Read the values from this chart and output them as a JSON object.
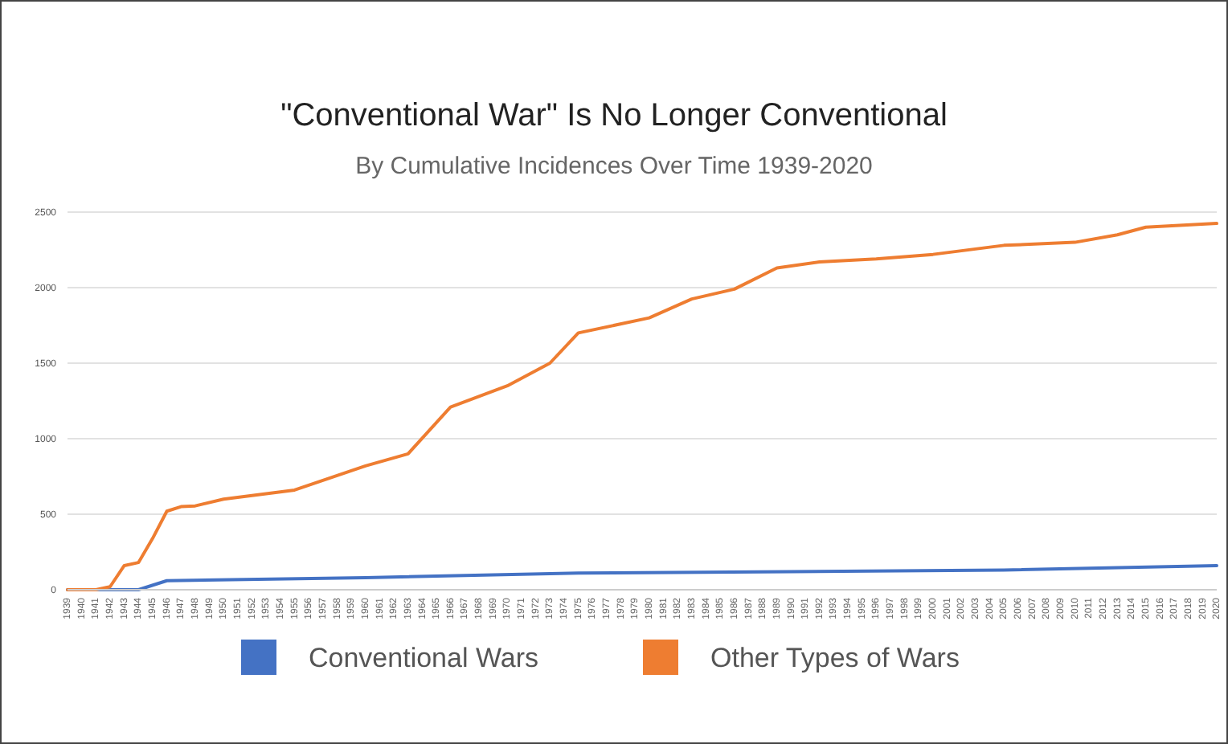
{
  "chart_data": {
    "type": "line",
    "title": "\"Conventional War\" Is No Longer Conventional",
    "subtitle": "By Cumulative Incidences Over Time 1939-2020",
    "xlim": [
      1939,
      2020
    ],
    "xticks": [
      1939,
      1940,
      1941,
      1942,
      1943,
      1944,
      1945,
      1946,
      1947,
      1948,
      1949,
      1950,
      1951,
      1952,
      1953,
      1954,
      1955,
      1956,
      1957,
      1958,
      1959,
      1960,
      1961,
      1962,
      1963,
      1964,
      1965,
      1966,
      1967,
      1968,
      1969,
      1970,
      1971,
      1972,
      1973,
      1974,
      1975,
      1976,
      1977,
      1978,
      1979,
      1980,
      1981,
      1982,
      1983,
      1984,
      1985,
      1986,
      1987,
      1988,
      1989,
      1990,
      1991,
      1992,
      1993,
      1994,
      1995,
      1996,
      1997,
      1998,
      1999,
      2000,
      2001,
      2002,
      2003,
      2004,
      2005,
      2006,
      2007,
      2008,
      2009,
      2010,
      2011,
      2012,
      2013,
      2014,
      2015,
      2016,
      2017,
      2018,
      2019,
      2020
    ],
    "ylim": [
      0,
      2500
    ],
    "yticks": [
      0,
      500,
      1000,
      1500,
      2000,
      2500
    ],
    "grid": "y",
    "legend": "bottom",
    "series": [
      {
        "name": "Conventional Wars",
        "color": "#4472c4",
        "x": [
          1939,
          1944,
          1946,
          1960,
          1975,
          1990,
          2005,
          2020
        ],
        "values": [
          0,
          0,
          60,
          80,
          110,
          120,
          130,
          160
        ]
      },
      {
        "name": "Other Types of Wars",
        "color": "#ee7d31",
        "x": [
          1939,
          1941,
          1942,
          1943,
          1944,
          1945,
          1946,
          1947,
          1948,
          1950,
          1955,
          1960,
          1963,
          1966,
          1970,
          1973,
          1975,
          1980,
          1983,
          1986,
          1989,
          1992,
          1996,
          2000,
          2005,
          2010,
          2013,
          2015,
          2020
        ],
        "values": [
          0,
          0,
          20,
          160,
          180,
          340,
          520,
          550,
          555,
          600,
          660,
          820,
          900,
          1210,
          1350,
          1500,
          1700,
          1800,
          1925,
          1990,
          2130,
          2170,
          2190,
          2220,
          2280,
          2300,
          2350,
          2400,
          2425
        ]
      }
    ]
  }
}
